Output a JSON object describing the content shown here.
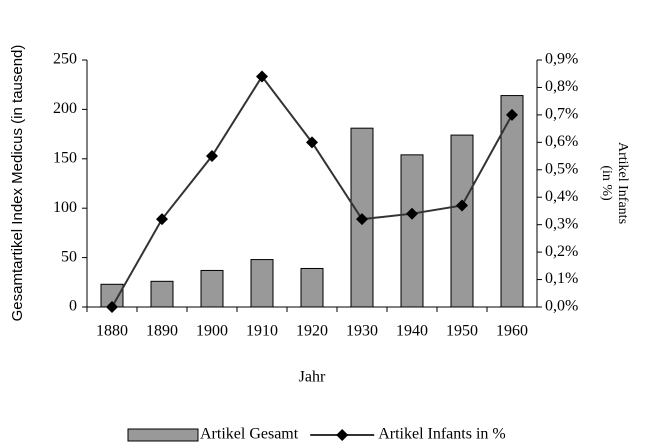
{
  "chart_data": {
    "type": "bar-line",
    "xlabel": "Jahr",
    "ylabel": "Gesamtartikel Index Medicus (in tausend)",
    "y2label": [
      "Artikel Infants",
      "(in %)"
    ],
    "categories": [
      "1880",
      "1890",
      "1900",
      "1910",
      "1920",
      "1930",
      "1940",
      "1950",
      "1960"
    ],
    "series": [
      {
        "name": "Artikel Gesamt",
        "type": "bar",
        "axis": "y",
        "color": "#999999",
        "values": [
          23,
          26,
          37,
          48,
          39,
          181,
          154,
          174,
          214
        ]
      },
      {
        "name": "Artikel Infants in %",
        "type": "line",
        "axis": "y2",
        "color": "#333333",
        "values": [
          0.0,
          0.32,
          0.55,
          0.84,
          0.6,
          0.32,
          0.34,
          0.37,
          0.7
        ]
      }
    ],
    "ylim": [
      0,
      250
    ],
    "yticks": [
      0,
      50,
      100,
      150,
      200,
      250
    ],
    "y2lim": [
      0,
      0.9
    ],
    "y2ticks": [
      {
        "value": 0.0,
        "label": "0,0%"
      },
      {
        "value": 0.1,
        "label": "0,1%"
      },
      {
        "value": 0.2,
        "label": "0,2%"
      },
      {
        "value": 0.3,
        "label": "0,3%"
      },
      {
        "value": 0.4,
        "label": "0,4%"
      },
      {
        "value": 0.5,
        "label": "0,5%"
      },
      {
        "value": 0.6,
        "label": "0,6%"
      },
      {
        "value": 0.7,
        "label": "0,7%"
      },
      {
        "value": 0.8,
        "label": "0,8%"
      },
      {
        "value": 0.9,
        "label": "0,9%"
      }
    ],
    "legend": "bottom"
  }
}
